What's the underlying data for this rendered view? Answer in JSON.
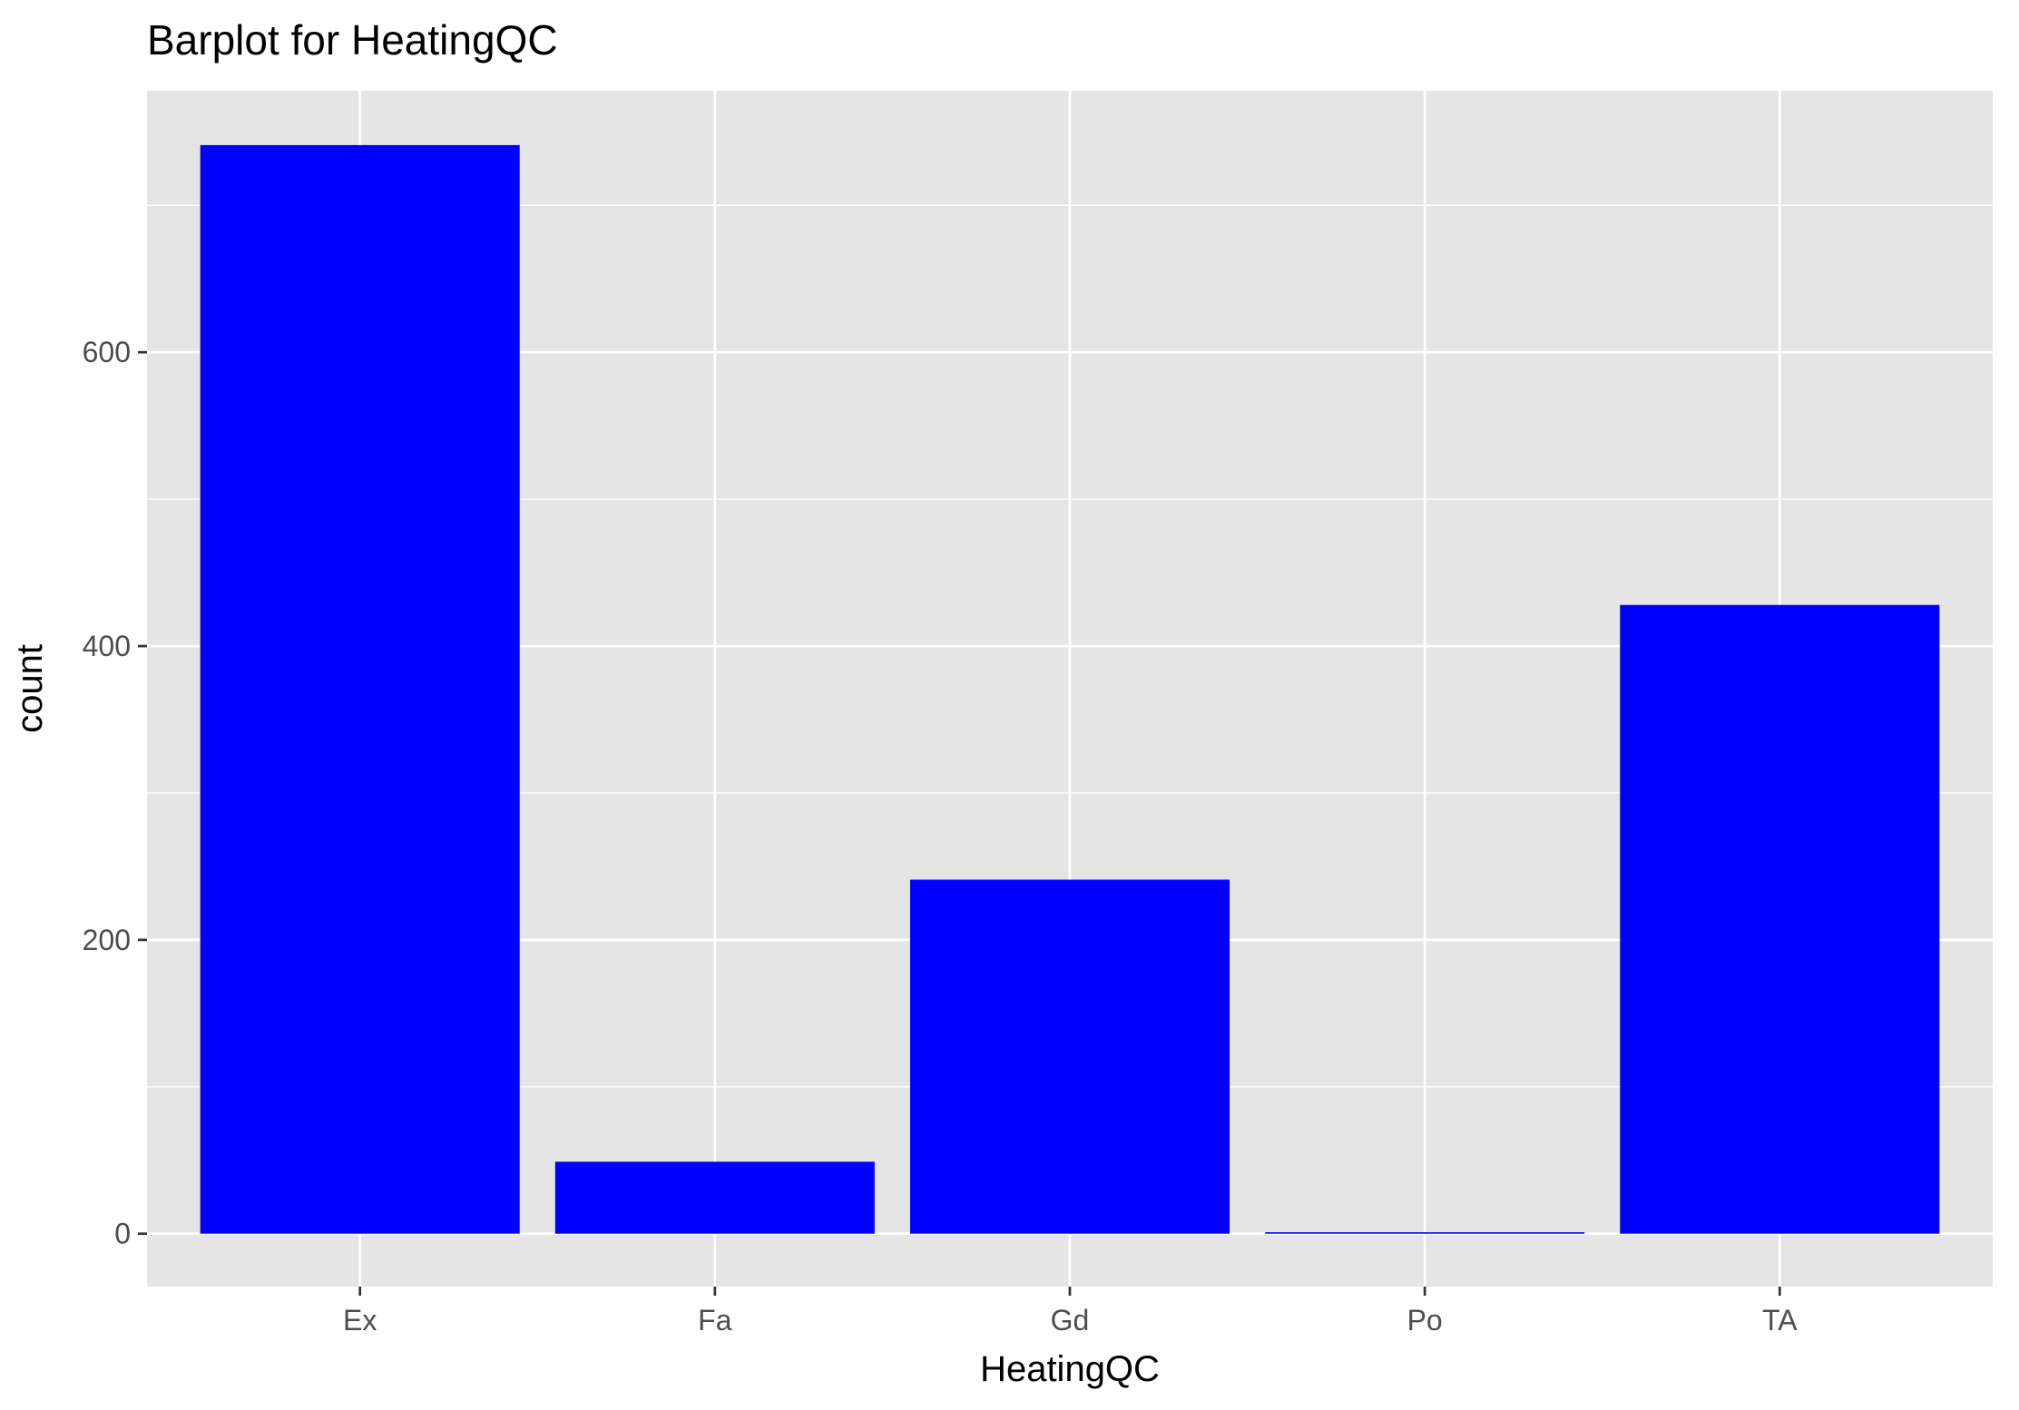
{
  "chart_data": {
    "type": "bar",
    "title": "Barplot for HeatingQC",
    "xlabel": "HeatingQC",
    "ylabel": "count",
    "categories": [
      "Ex",
      "Fa",
      "Gd",
      "Po",
      "TA"
    ],
    "values": [
      741,
      49,
      241,
      1,
      428
    ],
    "ylim": [
      -36,
      778
    ],
    "yticks": [
      0,
      200,
      400,
      600
    ],
    "ytick_labels": [
      "0",
      "200",
      "400",
      "600"
    ],
    "grid": true,
    "bar_color": "#0000ff",
    "panel_background": "#e5e5e5",
    "grid_color": "#ffffff",
    "tick_label_color": "#4d4d4d"
  }
}
